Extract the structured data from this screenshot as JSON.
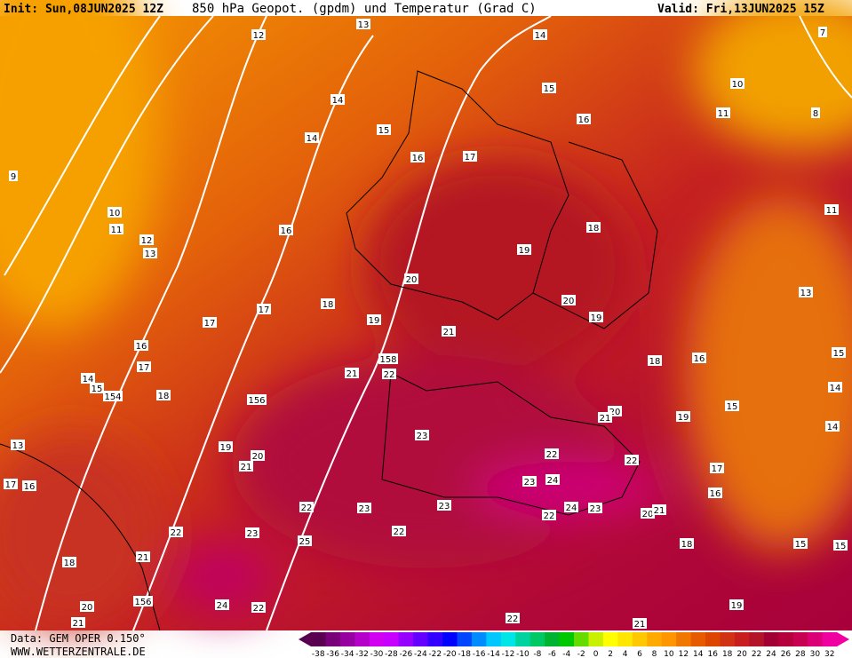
{
  "header": {
    "init": "Init: Sun,08JUN2025 12Z",
    "title": "850 hPa Geopot. (gpdm) und Temperatur (Grad C)",
    "valid": "Valid: Fri,13JUN2025 15Z"
  },
  "footer": {
    "data": "Data: GEM OPER 0.150°",
    "site": "WWW.WETTERZENTRALE.DE"
  },
  "contour_labels": [
    12,
    13,
    14,
    15,
    7,
    10,
    11,
    8,
    14,
    15,
    16,
    14,
    16,
    17,
    9,
    10,
    11,
    12,
    13,
    16,
    19,
    18,
    11,
    13,
    20,
    20,
    19,
    18,
    17,
    17,
    19,
    21,
    16,
    17,
    14,
    15,
    154,
    158,
    21,
    22,
    18,
    16,
    15,
    14,
    18,
    156,
    15,
    20,
    21,
    19,
    14,
    23,
    13,
    19,
    20,
    21,
    22,
    22,
    17,
    17,
    16,
    23,
    24,
    16,
    22,
    23,
    23,
    24,
    23,
    20,
    21,
    22,
    22,
    23,
    22,
    25,
    18,
    15,
    15,
    18,
    21,
    24,
    22,
    20,
    156,
    19,
    21,
    22,
    21
  ],
  "colorbar": {
    "ticks": [
      -38,
      -36,
      -34,
      -32,
      -30,
      -28,
      -26,
      -24,
      -22,
      -20,
      -18,
      -16,
      -14,
      -12,
      -10,
      -8,
      -6,
      -4,
      -2,
      0,
      2,
      4,
      6,
      8,
      10,
      12,
      14,
      16,
      18,
      20,
      22,
      24,
      26,
      28,
      30,
      32
    ],
    "colors": [
      "#5a0050",
      "#780078",
      "#9600a0",
      "#b400c8",
      "#d200f0",
      "#c800ff",
      "#9600ff",
      "#6400ff",
      "#3200ff",
      "#0000ff",
      "#0046ff",
      "#008cff",
      "#00c8ff",
      "#00e6e6",
      "#00d2a0",
      "#00c864",
      "#00b432",
      "#00c800",
      "#64dc00",
      "#c8f000",
      "#ffff00",
      "#ffe600",
      "#ffc800",
      "#ffaa00",
      "#ff9600",
      "#f07800",
      "#e65a00",
      "#dc4600",
      "#d23214",
      "#c81e1e",
      "#b41428",
      "#a00032",
      "#b4003c",
      "#c80050",
      "#dc0078",
      "#f000a0"
    ]
  }
}
